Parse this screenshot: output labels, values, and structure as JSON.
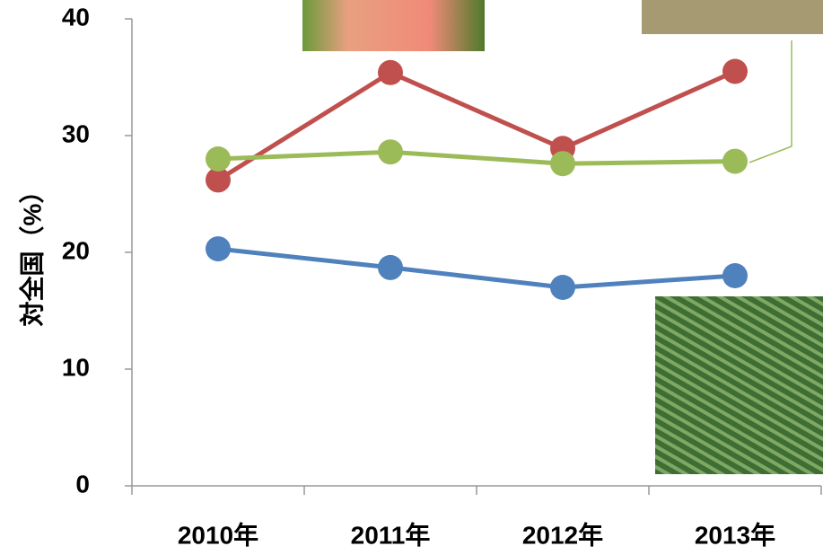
{
  "chart_data": {
    "type": "line",
    "y_label": "対全国（%）",
    "categories": [
      "2010年",
      "2011年",
      "2012年",
      "2013年"
    ],
    "series": [
      {
        "color": "#c0504d",
        "values": [
          26.2,
          35.4,
          28.9,
          35.5
        ]
      },
      {
        "color": "#9bbb59",
        "values": [
          28.0,
          28.6,
          27.6,
          27.8
        ]
      },
      {
        "color": "#4f81bd",
        "values": [
          20.3,
          18.7,
          17.0,
          18.0
        ]
      }
    ],
    "ylim": [
      0,
      40
    ],
    "yticks": [
      0,
      10,
      20,
      30,
      40
    ]
  }
}
